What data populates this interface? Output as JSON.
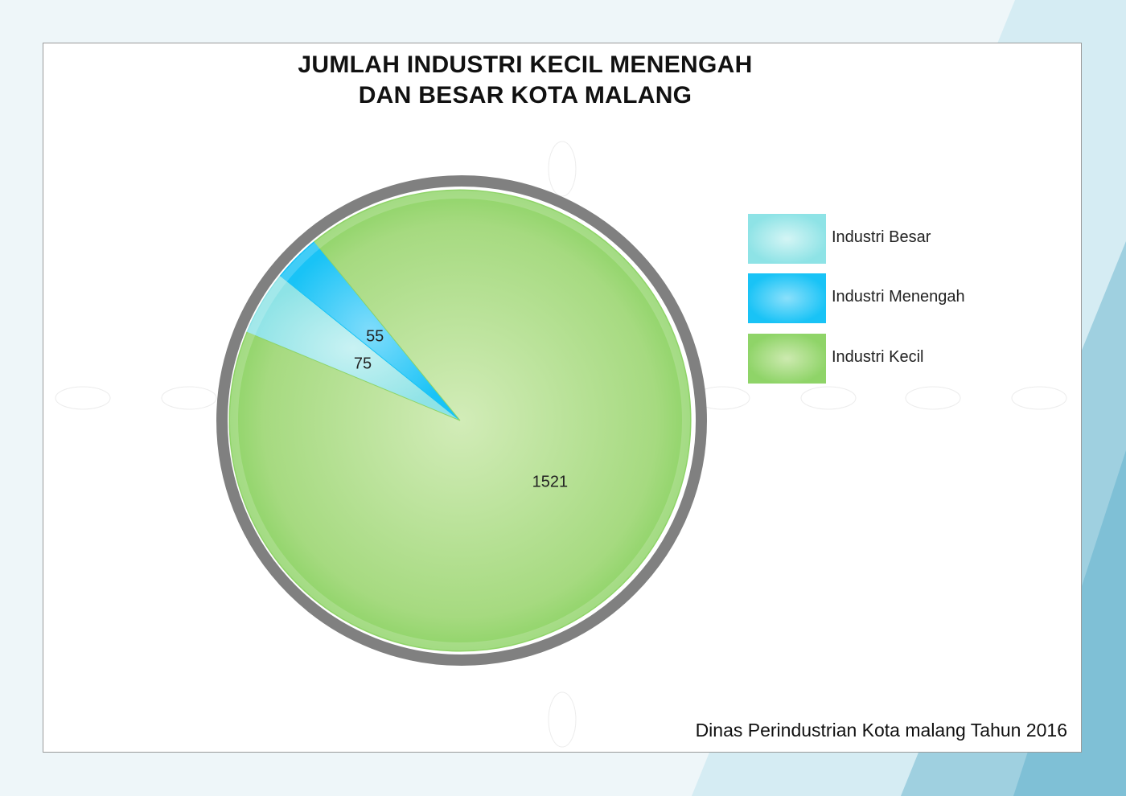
{
  "chart_data": {
    "type": "pie",
    "title": [
      "JUMLAH INDUSTRI KECIL MENENGAH",
      "DAN BESAR KOTA MALANG"
    ],
    "categories": [
      "Industri Besar",
      "Industri Menengah",
      "Industri Kecil"
    ],
    "values": [
      75,
      55,
      1521
    ],
    "colors": [
      "#8ee3e6",
      "#19c3f6",
      "#8fd468"
    ],
    "legend_position": "right",
    "source_note": "Dinas Perindustrian Kota malang Tahun 2016"
  }
}
